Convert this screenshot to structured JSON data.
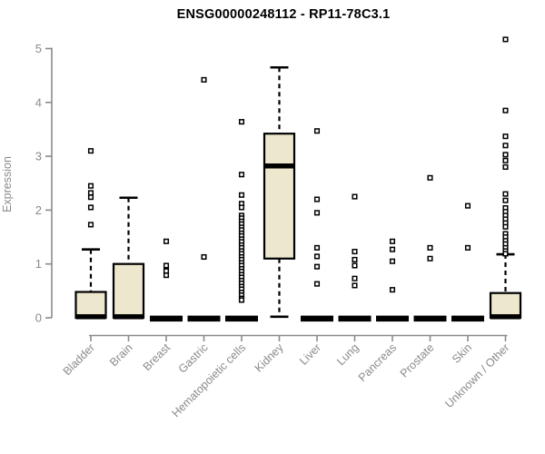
{
  "header": {
    "title": "ENSG00000248112 - RP11-78C3.1"
  },
  "colors": {
    "box_fill": "#EDE7CE",
    "box_border": "#000000",
    "median": "#000000",
    "outlier_fill": "#FFFFFF",
    "axis": "#8A8A8A",
    "tick_label": "#8A8A8A",
    "title": "#000000",
    "background": "#FFFFFF"
  },
  "chart_data": {
    "type": "boxplot",
    "title": "ENSG00000248112 - RP11-78C3.1",
    "xlabel": "",
    "ylabel": "Expression",
    "ylim": [
      0,
      5.3
    ],
    "yticks": [
      0,
      1,
      2,
      3,
      4,
      5
    ],
    "grid": false,
    "legend": false,
    "categories": [
      "Bladder",
      "Brain",
      "Breast",
      "Gastric",
      "Hematopoietic cells",
      "Kidney",
      "Liver",
      "Lung",
      "Pancreas",
      "Prostate",
      "Skin",
      "Unknown / Other"
    ],
    "series": [
      {
        "name": "Bladder",
        "q1": 0,
        "median": 0.02,
        "q3": 0.48,
        "whisker_low": 0,
        "whisker_high": 1.27,
        "outliers": [
          3.1,
          2.45,
          2.32,
          2.24,
          2.05,
          1.73
        ]
      },
      {
        "name": "Brain",
        "q1": 0,
        "median": 0.02,
        "q3": 1.0,
        "whisker_low": 0,
        "whisker_high": 2.23,
        "outliers": []
      },
      {
        "name": "Breast",
        "q1": 0,
        "median": 0.02,
        "q3": 0.02,
        "whisker_low": 0,
        "whisker_high": 0.02,
        "outliers": [
          1.42,
          0.97,
          0.87,
          0.79
        ]
      },
      {
        "name": "Gastric",
        "q1": 0,
        "median": 0.02,
        "q3": 0.02,
        "whisker_low": 0,
        "whisker_high": 0.02,
        "outliers": [
          4.42,
          1.13
        ]
      },
      {
        "name": "Hematopoietic cells",
        "q1": 0,
        "median": 0.02,
        "q3": 0.02,
        "whisker_low": 0,
        "whisker_high": 0.02,
        "outliers": [
          3.64,
          2.66,
          2.28,
          2.12,
          2.05,
          1.9,
          1.85,
          1.79,
          1.74,
          1.68,
          1.63,
          1.57,
          1.52,
          1.46,
          1.41,
          1.35,
          1.3,
          1.24,
          1.19,
          1.13,
          1.08,
          1.02,
          0.97,
          0.91,
          0.86,
          0.8,
          0.75,
          0.69,
          0.64,
          0.58,
          0.53,
          0.47,
          0.42,
          0.36,
          0.33
        ]
      },
      {
        "name": "Kidney",
        "q1": 1.1,
        "median": 2.82,
        "q3": 3.42,
        "whisker_low": 0.02,
        "whisker_high": 4.65,
        "outliers": []
      },
      {
        "name": "Liver",
        "q1": 0,
        "median": 0.02,
        "q3": 0.02,
        "whisker_low": 0,
        "whisker_high": 0.02,
        "outliers": [
          3.47,
          2.2,
          1.95,
          1.3,
          1.14,
          0.95,
          0.63
        ]
      },
      {
        "name": "Lung",
        "q1": 0,
        "median": 0.02,
        "q3": 0.02,
        "whisker_low": 0,
        "whisker_high": 0.02,
        "outliers": [
          2.25,
          1.23,
          1.08,
          0.97,
          0.73,
          0.6
        ]
      },
      {
        "name": "Pancreas",
        "q1": 0,
        "median": 0.02,
        "q3": 0.02,
        "whisker_low": 0,
        "whisker_high": 0.02,
        "outliers": [
          1.42,
          1.27,
          1.05,
          0.52
        ]
      },
      {
        "name": "Prostate",
        "q1": 0,
        "median": 0.02,
        "q3": 0.02,
        "whisker_low": 0,
        "whisker_high": 0.02,
        "outliers": [
          2.6,
          1.3,
          1.1
        ]
      },
      {
        "name": "Skin",
        "q1": 0,
        "median": 0.02,
        "q3": 0.02,
        "whisker_low": 0,
        "whisker_high": 0.02,
        "outliers": [
          2.08,
          1.3
        ]
      },
      {
        "name": "Unknown / Other",
        "q1": 0,
        "median": 0.02,
        "q3": 0.46,
        "whisker_low": 0,
        "whisker_high": 1.18,
        "outliers": [
          5.17,
          3.85,
          3.37,
          3.2,
          3.03,
          2.92,
          2.8,
          2.3,
          2.18,
          2.04,
          1.97,
          1.9,
          1.83,
          1.76,
          1.69,
          1.56,
          1.5,
          1.43,
          1.37,
          1.3,
          1.24,
          1.19
        ]
      }
    ]
  }
}
